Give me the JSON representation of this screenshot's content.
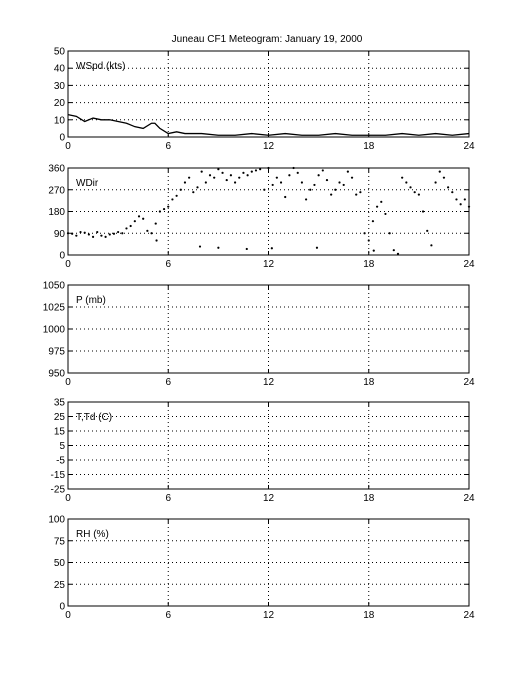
{
  "title": "Juneau CF1 Meteogram:   January 19, 2000",
  "chart_data": [
    {
      "type": "line",
      "label": "WSpd (kts)",
      "xlim": [
        0,
        24
      ],
      "xticks": [
        0,
        6,
        12,
        18,
        24
      ],
      "ylim": [
        0,
        50
      ],
      "yticks": [
        0,
        10,
        20,
        30,
        40,
        50
      ],
      "grid": true,
      "series": [
        {
          "x": [
            0,
            0.5,
            1,
            1.5,
            2,
            2.5,
            3,
            3.5,
            4,
            4.5,
            5,
            5.2,
            5.5,
            6,
            6.5,
            7,
            8,
            9,
            10,
            11,
            12,
            13,
            14,
            15,
            16,
            17,
            18,
            19,
            20,
            21,
            22,
            23,
            24
          ],
          "y": [
            13,
            12,
            9,
            11,
            10,
            10,
            9,
            8,
            6,
            5,
            8,
            8,
            5,
            2,
            3,
            2,
            2,
            1,
            1,
            2,
            1,
            2,
            1,
            1,
            2,
            1,
            1,
            1,
            2,
            1,
            2,
            1,
            2
          ]
        }
      ]
    },
    {
      "type": "scatter",
      "label": "WDir",
      "xlim": [
        0,
        24
      ],
      "xticks": [
        0,
        6,
        12,
        18,
        24
      ],
      "ylim": [
        0,
        360
      ],
      "yticks": [
        0,
        90,
        180,
        270,
        360
      ],
      "grid": true,
      "series": [
        {
          "x": [
            0,
            0.25,
            0.5,
            0.75,
            1,
            1.25,
            1.5,
            1.75,
            2,
            2.25,
            2.5,
            2.75,
            3,
            3.25,
            3.5,
            3.75,
            4,
            4.25,
            4.5,
            4.75,
            5,
            5.25,
            5.5,
            5.75,
            6,
            6.25,
            6.5,
            6.75,
            7,
            7.25,
            7.5,
            7.75,
            8,
            8.25,
            8.5,
            8.75,
            9,
            9.25,
            9.5,
            9.75,
            10,
            10.25,
            10.5,
            10.75,
            11,
            11.25,
            11.5,
            11.75,
            12,
            12.25,
            12.5,
            12.75,
            13,
            13.25,
            13.5,
            13.75,
            14,
            14.25,
            14.5,
            14.75,
            15,
            15.25,
            15.5,
            15.75,
            16,
            16.25,
            16.5,
            16.75,
            17,
            17.25,
            17.5,
            17.75,
            18,
            18.25,
            18.5,
            18.75,
            19,
            19.25,
            19.5,
            19.75,
            20,
            20.25,
            20.5,
            20.75,
            21,
            21.25,
            21.5,
            21.75,
            22,
            22.25,
            22.5,
            22.75,
            23,
            23.25,
            23.5,
            23.75,
            24
          ],
          "y": [
            90,
            88,
            80,
            95,
            92,
            85,
            75,
            95,
            80,
            75,
            85,
            88,
            95,
            90,
            110,
            120,
            140,
            160,
            150,
            100,
            90,
            130,
            180,
            190,
            200,
            230,
            245,
            270,
            300,
            320,
            260,
            280,
            345,
            300,
            330,
            320,
            355,
            340,
            310,
            330,
            300,
            320,
            340,
            330,
            345,
            350,
            355,
            270,
            360,
            290,
            320,
            300,
            240,
            330,
            360,
            340,
            300,
            230,
            270,
            290,
            330,
            350,
            310,
            250,
            270,
            300,
            290,
            345,
            320,
            250,
            260,
            90,
            60,
            140,
            200,
            220,
            170,
            90,
            20,
            5,
            320,
            300,
            280,
            260,
            250,
            180,
            100,
            40,
            300,
            345,
            320,
            280,
            260,
            230,
            210,
            230,
            200
          ]
        },
        {
          "x": [
            5.3,
            7.9,
            9.0,
            10.7,
            12.2,
            14.9,
            18.3
          ],
          "y": [
            60,
            35,
            30,
            25,
            28,
            30,
            18
          ]
        }
      ]
    },
    {
      "type": "line",
      "label": "P (mb)",
      "xlim": [
        0,
        24
      ],
      "xticks": [
        0,
        6,
        12,
        18,
        24
      ],
      "ylim": [
        950,
        1050
      ],
      "yticks": [
        950,
        975,
        1000,
        1025,
        1050
      ],
      "grid": true,
      "series": []
    },
    {
      "type": "line",
      "label": "T,Td (C)",
      "xlim": [
        0,
        24
      ],
      "xticks": [
        0,
        6,
        12,
        18,
        24
      ],
      "ylim": [
        -25,
        35
      ],
      "yticks": [
        -25,
        -15,
        -5,
        5,
        15,
        25,
        35
      ],
      "yticklabels": [
        "-25",
        "-15",
        "-5",
        "5",
        "15",
        "25",
        "35"
      ],
      "grid": true,
      "series": []
    },
    {
      "type": "line",
      "label": "RH (%)",
      "xlim": [
        0,
        24
      ],
      "xticks": [
        0,
        6,
        12,
        18,
        24
      ],
      "ylim": [
        0,
        100
      ],
      "yticks": [
        0,
        25,
        50,
        75,
        100
      ],
      "grid": true,
      "series": []
    }
  ]
}
